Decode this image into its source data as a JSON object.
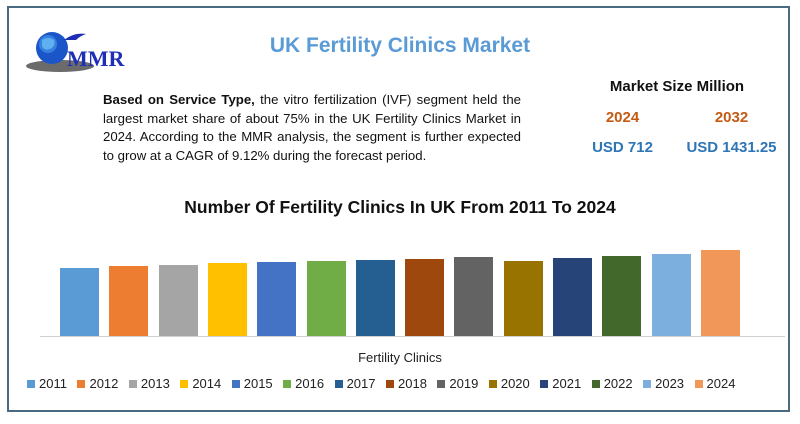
{
  "header": {
    "logo_text": "MMR",
    "title": "UK Fertility Clinics Market"
  },
  "description": {
    "bold_lead": "Based on Service Type,",
    "text": " the vitro fertilization (IVF) segment held the largest market share of about 75% in the UK Fertility Clinics Market in 2024.  According to the MMR analysis, the segment is further expected to grow at a CAGR of 9.12% during the forecast period."
  },
  "market_size": {
    "title": "Market Size Million",
    "years": [
      "2024",
      "2032"
    ],
    "values": [
      "USD 712",
      "USD 1431.25"
    ]
  },
  "colors": {
    "title": "#5b9bd5",
    "year": "#c55a11",
    "value": "#2e75b6",
    "border": "#4a6a80"
  },
  "chart_data": {
    "type": "bar",
    "title": "Number Of Fertility Clinics In UK From 2011 To 2024",
    "xlabel": "Fertility Clinics",
    "ylabel": "",
    "grid": false,
    "legend_position": "bottom",
    "value_unit": "relative bar height (px, no y-axis shown)",
    "categories": [
      "2011",
      "2012",
      "2013",
      "2014",
      "2015",
      "2016",
      "2017",
      "2018",
      "2019",
      "2020",
      "2021",
      "2022",
      "2023",
      "2024"
    ],
    "values": [
      68,
      70,
      71,
      73,
      74,
      75,
      76,
      77,
      79,
      75,
      78,
      80,
      82,
      86
    ],
    "series_colors": [
      "#5b9bd5",
      "#ed7d31",
      "#a5a5a5",
      "#ffc000",
      "#4472c4",
      "#70ad47",
      "#255e91",
      "#9e480e",
      "#636363",
      "#997300",
      "#264478",
      "#43682b",
      "#7cafdd",
      "#f1975a"
    ],
    "legend": [
      "2011",
      "2012",
      "2013",
      "2014",
      "2015",
      "2016",
      "2017",
      "2018",
      "2019",
      "2020",
      "2021",
      "2022",
      "2023",
      "2024"
    ]
  }
}
